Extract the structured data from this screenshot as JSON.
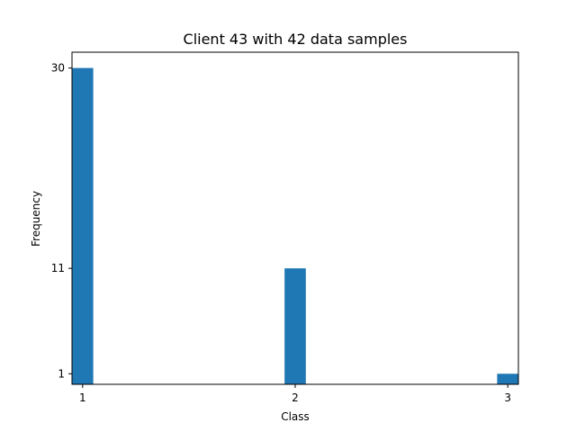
{
  "chart_data": {
    "type": "bar",
    "title": "Client 43 with 42 data samples",
    "xlabel": "Class",
    "ylabel": "Frequency",
    "categories": [
      "1",
      "2",
      "3"
    ],
    "x": [
      1,
      2,
      3
    ],
    "values": [
      30,
      11,
      1
    ],
    "xticks": [
      "1",
      "2",
      "3"
    ],
    "yticks": [
      1,
      11,
      30
    ],
    "ytick_labels": [
      "1",
      "11",
      "30"
    ],
    "xlim": [
      0.95,
      3.05
    ],
    "ylim": [
      0,
      31.5
    ],
    "bar_color": "#1f77b4",
    "grid": false,
    "legend": "none"
  }
}
